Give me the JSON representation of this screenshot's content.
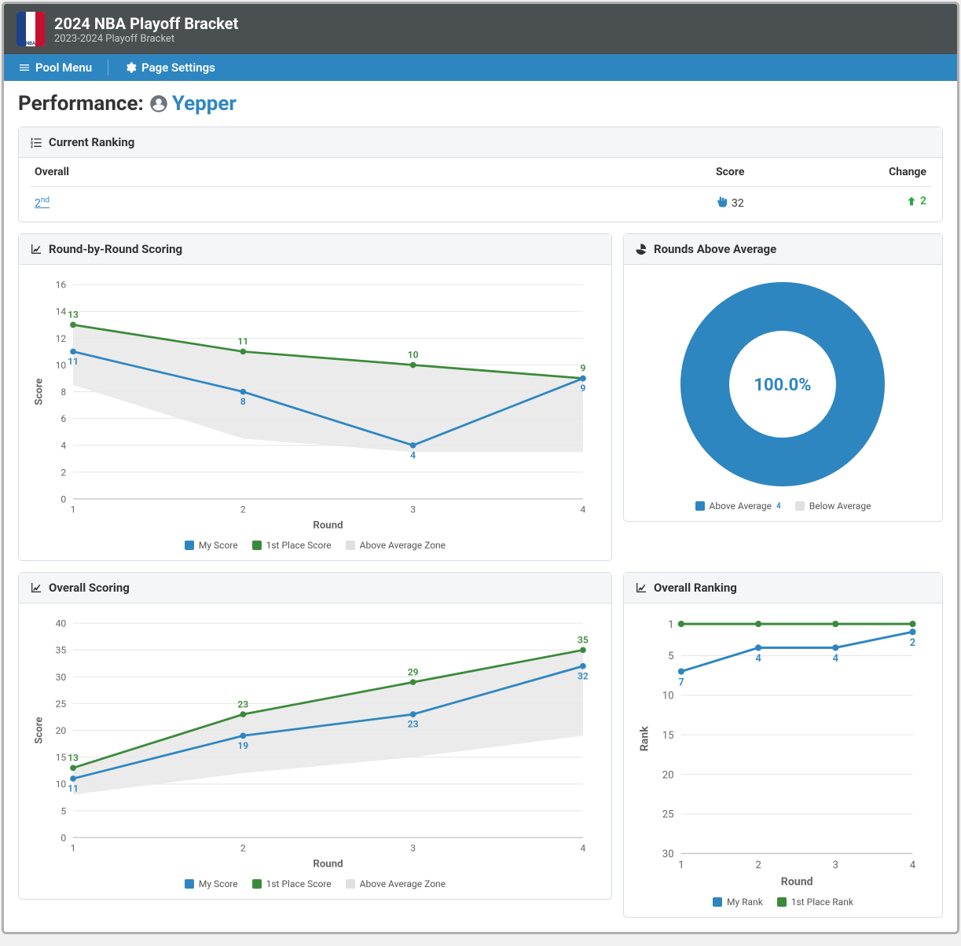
{
  "header": {
    "title": "2024 NBA Playoff Bracket",
    "subtitle": "2023-2024 Playoff Bracket"
  },
  "subnav": {
    "pool_menu": "Pool Menu",
    "page_settings": "Page Settings"
  },
  "performance": {
    "label": "Performance:",
    "username": "Yepper"
  },
  "ranking_panel": {
    "title": "Current Ranking",
    "columns": {
      "overall": "Overall",
      "score": "Score",
      "change": "Change"
    },
    "row": {
      "rank_num": "2",
      "rank_suffix": "nd",
      "score": "32",
      "change": "2"
    }
  },
  "colors": {
    "blue": "#2e86c1",
    "green": "#3b8a3b",
    "grey": "#e0e0e0",
    "grid": "#e8e8e8",
    "text_muted": "#666666",
    "up_green": "#28a745"
  },
  "round_chart": {
    "title": "Round-by-Round Scoring",
    "x_label": "Round",
    "y_label": "Score",
    "categories": [
      "1",
      "2",
      "3",
      "4"
    ],
    "ylim": [
      0,
      16
    ],
    "ytick_step": 2,
    "my_score": {
      "label": "My Score",
      "color": "#2e86c1",
      "values": [
        11,
        8,
        4,
        9
      ]
    },
    "first_place": {
      "label": "1st Place Score",
      "color": "#3b8a3b",
      "values": [
        13,
        11,
        10,
        9
      ]
    },
    "avg_zone": {
      "label": "Above Average Zone",
      "color": "#e0e0e0",
      "upper": [
        13,
        11,
        10,
        9
      ],
      "lower": [
        8.5,
        4.5,
        3.5,
        3.5
      ]
    }
  },
  "overall_chart": {
    "title": "Overall Scoring",
    "x_label": "Round",
    "y_label": "Score",
    "categories": [
      "1",
      "2",
      "3",
      "4"
    ],
    "ylim": [
      0,
      40
    ],
    "ytick_step": 5,
    "my_score": {
      "label": "My Score",
      "color": "#2e86c1",
      "values": [
        11,
        19,
        23,
        32
      ]
    },
    "first_place": {
      "label": "1st Place Score",
      "color": "#3b8a3b",
      "values": [
        13,
        23,
        29,
        35
      ]
    },
    "avg_zone": {
      "label": "Above Average Zone",
      "color": "#e0e0e0",
      "upper": [
        13,
        23,
        29,
        35
      ],
      "lower": [
        8,
        12,
        15,
        19
      ]
    }
  },
  "donut": {
    "title": "Rounds Above Average",
    "percent_label": "100.0%",
    "above": {
      "label": "Above Average",
      "value": 4,
      "color": "#2e86c1"
    },
    "below": {
      "label": "Below Average",
      "value": 0,
      "color": "#e0e0e0"
    },
    "superscript": "4"
  },
  "rank_chart": {
    "title": "Overall Ranking",
    "x_label": "Round",
    "y_label": "Rank",
    "categories": [
      "1",
      "2",
      "3",
      "4"
    ],
    "ylim": [
      30,
      1
    ],
    "yticks": [
      1,
      5,
      10,
      15,
      20,
      25,
      30
    ],
    "my_rank": {
      "label": "My Rank",
      "color": "#2e86c1",
      "values": [
        7,
        4,
        4,
        2
      ]
    },
    "first_place": {
      "label": "1st Place Rank",
      "color": "#3b8a3b",
      "values": [
        1,
        1,
        1,
        1
      ]
    }
  }
}
